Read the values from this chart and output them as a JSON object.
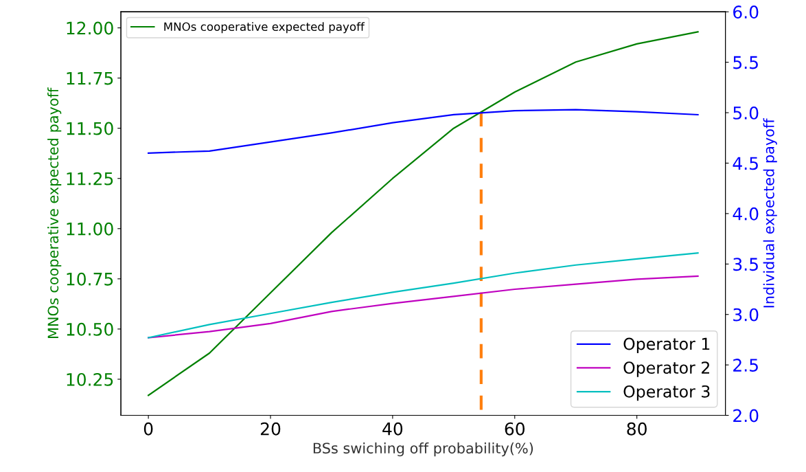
{
  "chart_data": {
    "type": "line",
    "xlabel": "BSs swiching off probability(%)",
    "ylabel": "MNOs cooperative expected payoff",
    "y2label": "Individual expected payoff",
    "x": [
      0,
      10,
      20,
      30,
      40,
      50,
      60,
      70,
      80,
      90
    ],
    "series": [
      {
        "name": "MNOs cooperative expected payoff",
        "color": "#008000",
        "axis": "y",
        "values": [
          10.17,
          10.38,
          10.68,
          10.98,
          11.25,
          11.5,
          11.68,
          11.83,
          11.92,
          11.98
        ]
      },
      {
        "name": "Operator 1",
        "color": "#0000ff",
        "axis": "y2",
        "values": [
          4.6,
          4.62,
          4.71,
          4.8,
          4.9,
          4.98,
          5.02,
          5.03,
          5.01,
          4.98
        ]
      },
      {
        "name": "Operator 2",
        "color": "#bf00bf",
        "axis": "y2",
        "values": [
          2.77,
          2.83,
          2.91,
          3.03,
          3.11,
          3.18,
          3.25,
          3.3,
          3.35,
          3.38
        ]
      },
      {
        "name": "Operator 3",
        "color": "#00bfbf",
        "axis": "y2",
        "values": [
          2.77,
          2.9,
          3.01,
          3.12,
          3.22,
          3.31,
          3.41,
          3.49,
          3.55,
          3.61
        ]
      },
      {
        "type": "line",
        "color": "#ff7f0e",
        "axis": "y",
        "line_style": "dashed",
        "x": [
          54.5,
          54.5
        ],
        "values": [
          11.58,
          10.07
        ]
      }
    ],
    "xlim": [
      -4.5,
      94.5
    ],
    "xticks": [
      0,
      20,
      40,
      60,
      80
    ],
    "ylim": [
      10.07,
      12.08
    ],
    "yticks": [
      {
        "value": 10.25,
        "label": "10.25"
      },
      {
        "value": 10.5,
        "label": "10.50"
      },
      {
        "value": 10.75,
        "label": "10.75"
      },
      {
        "value": 11.0,
        "label": "11.00"
      },
      {
        "value": 11.25,
        "label": "11.25"
      },
      {
        "value": 11.5,
        "label": "11.50"
      },
      {
        "value": 11.75,
        "label": "11.75"
      },
      {
        "value": 12.0,
        "label": "12.00"
      }
    ],
    "y2lim": [
      2,
      6
    ],
    "y2ticks": [
      {
        "value": 2,
        "label": "2.0"
      },
      {
        "value": 2.5,
        "label": "2.5"
      },
      {
        "value": 3,
        "label": "3.0"
      },
      {
        "value": 3.5,
        "label": "3.5"
      },
      {
        "value": 4,
        "label": "4.0"
      },
      {
        "value": 4.5,
        "label": "4.5"
      },
      {
        "value": 5,
        "label": "5.0"
      },
      {
        "value": 5.5,
        "label": "5.5"
      },
      {
        "value": 6,
        "label": "6.0"
      }
    ],
    "grid": false,
    "legend": "top left",
    "marker": "none",
    "line_style": "solid"
  }
}
